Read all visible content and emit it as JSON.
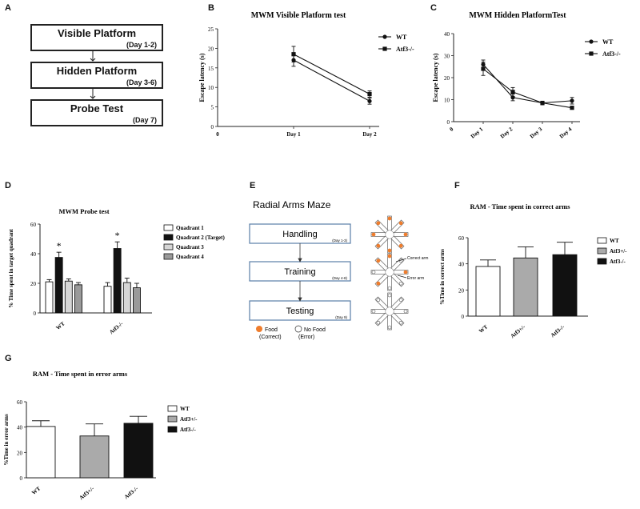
{
  "panels": {
    "A": "A",
    "B": "B",
    "C": "C",
    "D": "D",
    "E": "E",
    "F": "F",
    "G": "G"
  },
  "panel_a": {
    "steps": [
      {
        "title": "Visible Platform",
        "days": "(Day 1-2)"
      },
      {
        "title": "Hidden Platform",
        "days": "(Day 3-6)"
      },
      {
        "title": "Probe Test",
        "days": "(Day 7)"
      }
    ]
  },
  "panel_e": {
    "title": "Radial Arms Maze",
    "stages": [
      {
        "label": "Handling",
        "days": "(Day 1-3)"
      },
      {
        "label": "Training",
        "days": "(Day 4-8)"
      },
      {
        "label": "Testing",
        "days": "(Day 9)"
      }
    ],
    "legend_food": "Food",
    "legend_food_sub": "(Correct)",
    "legend_nofood": "No Food",
    "legend_nofood_sub": "(Error)",
    "correct_arm": "Correct arm",
    "error_arm": "Error arm",
    "colors": {
      "food": "#ef7d2d"
    }
  },
  "chart_data": [
    {
      "id": "B",
      "type": "line",
      "title": "MWM Visible Platform test",
      "xlabel": "",
      "ylabel": "Escape latency (s)",
      "categories": [
        "0",
        "Day 1",
        "Day 2"
      ],
      "ylim": [
        0,
        25
      ],
      "yticks": [
        0,
        5,
        10,
        15,
        20,
        25
      ],
      "series": [
        {
          "name": "WT",
          "marker": "circle",
          "x": [
            1,
            2
          ],
          "values": [
            17.0,
            6.5
          ],
          "errors": [
            1.6,
            0.8
          ]
        },
        {
          "name": "Atf3-/-",
          "marker": "square",
          "x": [
            1,
            2
          ],
          "values": [
            18.5,
            8.3
          ],
          "errors": [
            2.0,
            0.8
          ]
        }
      ]
    },
    {
      "id": "C",
      "type": "line",
      "title": "MWM Hidden PlatformTest",
      "xlabel": "",
      "ylabel": "Escape latency (s)",
      "categories": [
        "0",
        "Day 1",
        "Day 2",
        "Day 3",
        "Day 4"
      ],
      "ylim": [
        0,
        40
      ],
      "yticks": [
        0,
        10,
        20,
        30,
        40
      ],
      "series": [
        {
          "name": "WT",
          "marker": "circle",
          "x": [
            1,
            2,
            3,
            4
          ],
          "values": [
            26,
            11,
            8.5,
            9.5
          ],
          "errors": [
            2,
            1.5,
            0.8,
            1.5
          ]
        },
        {
          "name": "Atf3-/-",
          "marker": "square",
          "x": [
            1,
            2,
            3,
            4
          ],
          "values": [
            24,
            13.5,
            8.5,
            6.3
          ],
          "errors": [
            3,
            2,
            0.8,
            0.6
          ]
        }
      ]
    },
    {
      "id": "D",
      "type": "bar",
      "title": "MWM Probe test",
      "ylabel": "% Time spent in target quadrant",
      "categories": [
        "WT",
        "Atf3-/-"
      ],
      "ylim": [
        0,
        60
      ],
      "yticks": [
        0,
        20,
        40,
        60
      ],
      "series": [
        {
          "name": "Quadrant 1",
          "color": "#ffffff",
          "values": [
            21,
            18
          ],
          "errors": [
            1.5,
            2.5
          ]
        },
        {
          "name": "Quadrant 2 (Target)",
          "color": "#111111",
          "values": [
            37.5,
            43.5
          ],
          "errors": [
            3.5,
            4.5
          ]
        },
        {
          "name": "Quadrant 3",
          "color": "#d6d6d6",
          "values": [
            21.5,
            20.5
          ],
          "errors": [
            1.5,
            3
          ]
        },
        {
          "name": "Quadrant 4",
          "color": "#9a9a9a",
          "values": [
            19,
            17
          ],
          "errors": [
            1.5,
            3
          ]
        }
      ],
      "annotations": [
        "*",
        "*"
      ]
    },
    {
      "id": "F",
      "type": "bar",
      "title": "RAM - Time spent in correct arms",
      "ylabel": "%Time in correct arms",
      "categories": [
        "WT",
        "Atf3+/-",
        "Atf3-/-"
      ],
      "ylim": [
        0,
        60
      ],
      "yticks": [
        0,
        20,
        40,
        60
      ],
      "series": [
        {
          "name": "Time in correct arms",
          "values": [
            38,
            44.5,
            47
          ],
          "errors": [
            5,
            8.5,
            9.5
          ],
          "colors": [
            "#ffffff",
            "#aaaaaa",
            "#111111"
          ]
        }
      ],
      "legend": [
        "WT",
        "Atf3+/-",
        "Atf3-/-"
      ]
    },
    {
      "id": "G",
      "type": "bar",
      "title": "RAM - Time spent in error arms",
      "ylabel": "%Time in error arms",
      "categories": [
        "WT",
        "Atf3+/-",
        "Atf3-/-"
      ],
      "ylim": [
        0,
        60
      ],
      "yticks": [
        0,
        20,
        40,
        60
      ],
      "series": [
        {
          "name": "Time in error arms",
          "values": [
            40.5,
            33,
            43
          ],
          "errors": [
            4.5,
            9.5,
            5.5
          ],
          "colors": [
            "#ffffff",
            "#aaaaaa",
            "#111111"
          ]
        }
      ],
      "legend": [
        "WT",
        "Atf3+/-",
        "Atf3-/-"
      ]
    }
  ]
}
